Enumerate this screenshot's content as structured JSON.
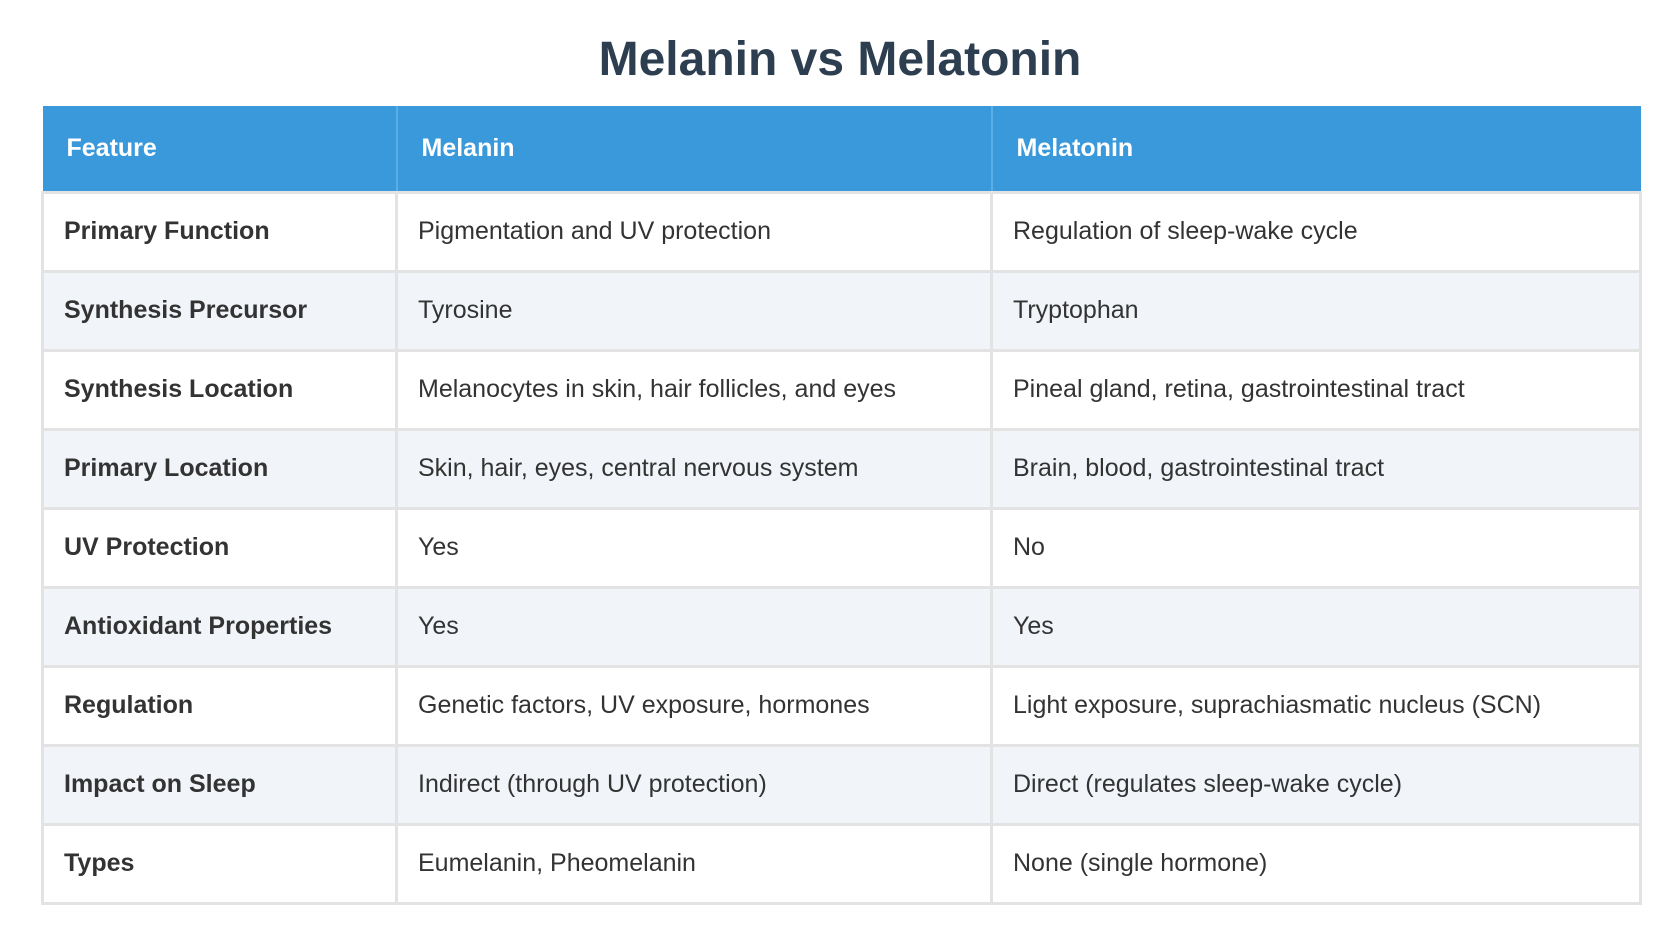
{
  "title": "Melanin vs Melatonin",
  "header": {
    "col1": "Feature",
    "col2": "Melanin",
    "col3": "Melatonin"
  },
  "rows": [
    {
      "feature": "Primary Function",
      "melanin": "Pigmentation and UV protection",
      "melatonin": "Regulation of sleep-wake cycle"
    },
    {
      "feature": "Synthesis Precursor",
      "melanin": "Tyrosine",
      "melatonin": "Tryptophan"
    },
    {
      "feature": "Synthesis Location",
      "melanin": "Melanocytes in skin, hair follicles, and eyes",
      "melatonin": "Pineal gland, retina, gastrointestinal tract"
    },
    {
      "feature": "Primary Location",
      "melanin": "Skin, hair, eyes, central nervous system",
      "melatonin": "Brain, blood, gastrointestinal tract"
    },
    {
      "feature": "UV Protection",
      "melanin": "Yes",
      "melatonin": "No"
    },
    {
      "feature": "Antioxidant Properties",
      "melanin": "Yes",
      "melatonin": "Yes"
    },
    {
      "feature": "Regulation",
      "melanin": "Genetic factors, UV exposure, hormones",
      "melatonin": "Light exposure, suprachiasmatic nucleus (SCN)"
    },
    {
      "feature": "Impact on Sleep",
      "melanin": "Indirect (through UV protection)",
      "melatonin": "Direct (regulates sleep-wake cycle)"
    },
    {
      "feature": "Types",
      "melanin": "Eumelanin, Pheomelanin",
      "melatonin": "None (single hormone)"
    }
  ],
  "colors": {
    "header_bg": "#3a99db",
    "title": "#2c3e50",
    "row_alt": "#f1f5f9"
  }
}
